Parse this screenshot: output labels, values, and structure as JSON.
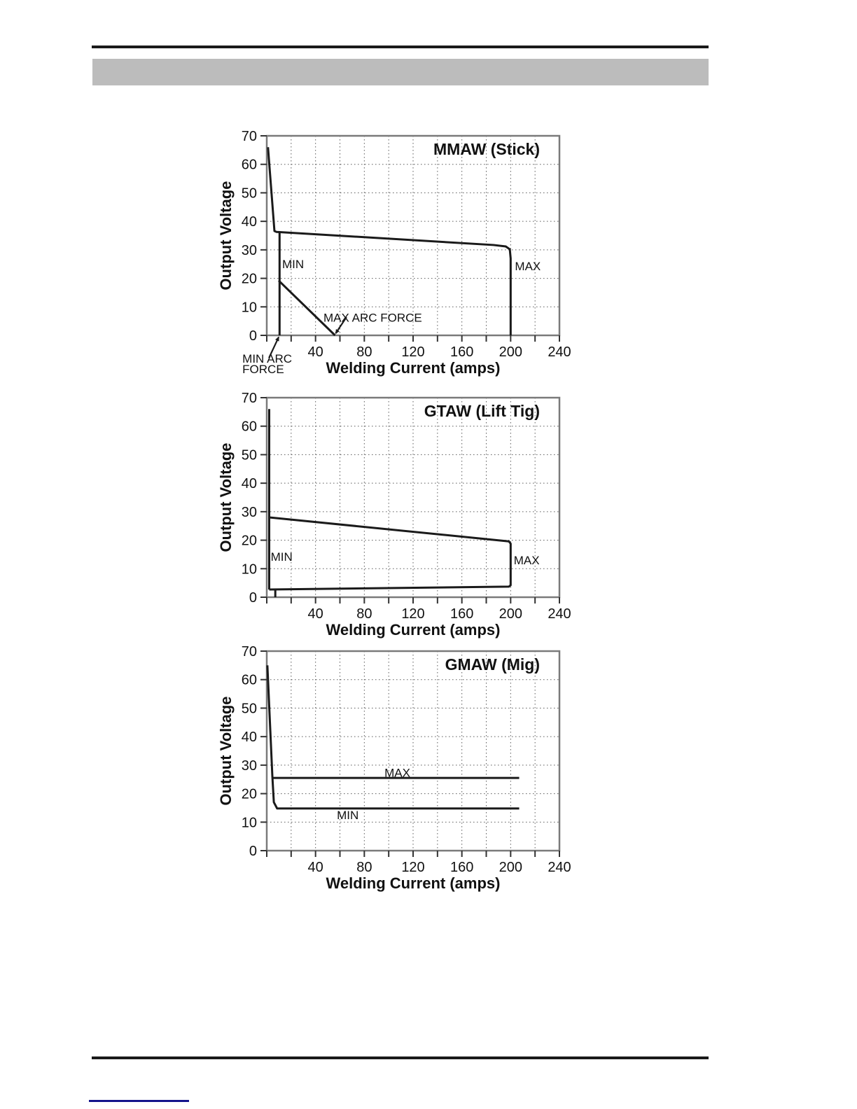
{
  "page": {
    "background": "#ffffff",
    "rule_color": "#1a1a1a",
    "header_bar_color": "#bcbcbc",
    "footer_link_color": "#14148c"
  },
  "style": {
    "curve_color": "#1a1a1a",
    "axis_color": "#7a7a7a",
    "grid_color": "#5a5a5a",
    "text_color": "#111111"
  },
  "chart_data": [
    {
      "type": "line",
      "title": "MMAW (Stick)",
      "xlabel": "Welding Current (amps)",
      "ylabel": "Output Voltage",
      "xlim": [
        0,
        240
      ],
      "ylim": [
        0,
        70
      ],
      "x_major_ticks": [
        40,
        80,
        120,
        160,
        200,
        240
      ],
      "x_tick_labels": [
        "40",
        "80",
        "120",
        "160",
        "200",
        "240"
      ],
      "x_minor_step": 20,
      "y_ticks": [
        0,
        10,
        20,
        30,
        40,
        50,
        60,
        70
      ],
      "y_tick_labels": [
        "0",
        "10",
        "20",
        "30",
        "40",
        "50",
        "60",
        "70"
      ],
      "grid": {
        "x_step": 20,
        "y_step": 10,
        "style": "dotted"
      },
      "legend": "none",
      "series": [
        {
          "name": "max-curve",
          "points": [
            [
              1,
              66
            ],
            [
              6.3,
              36.6
            ],
            [
              8,
              36.3
            ],
            [
              186,
              31.7
            ],
            [
              196,
              31.2
            ],
            [
              199.3,
              30.2
            ],
            [
              200,
              27
            ],
            [
              200,
              0
            ]
          ]
        },
        {
          "name": "min-current-limit",
          "points": [
            [
              10.5,
              36
            ],
            [
              10.5,
              0
            ]
          ]
        },
        {
          "name": "max-arc-force-line",
          "points": [
            [
              9.8,
              19.2
            ],
            [
              56,
              0
            ]
          ]
        }
      ],
      "annotations": [
        {
          "name": "min-label",
          "text": "MIN",
          "x": 12.6,
          "y": 23.6
        },
        {
          "name": "max-label",
          "text": "MAX",
          "x": 203.5,
          "y": 22.8
        },
        {
          "name": "max-arc-force-label",
          "text": "MAX ARC FORCE",
          "x": 46.5,
          "y": 4.8
        },
        {
          "name": "min-arc-force-label-line1",
          "text": "MIN ARC",
          "x": -20,
          "y": -9.6
        },
        {
          "name": "min-arc-force-label-line2",
          "text": "FORCE",
          "x": -20,
          "y": -13.3
        }
      ],
      "arrows": [
        {
          "name": "max-arc-force-arrow",
          "from": [
            65.4,
            6.4
          ],
          "to": [
            56.5,
            0.7
          ]
        },
        {
          "name": "min-arc-force-arrow",
          "from": [
            1.8,
            -7.9
          ],
          "to": [
            9.8,
            -0.6
          ]
        }
      ]
    },
    {
      "type": "line",
      "title": "GTAW (Lift Tig)",
      "xlabel": "Welding Current (amps)",
      "ylabel": "Output Voltage",
      "xlim": [
        0,
        240
      ],
      "ylim": [
        0,
        70
      ],
      "x_major_ticks": [
        40,
        80,
        120,
        160,
        200,
        240
      ],
      "x_tick_labels": [
        "40",
        "80",
        "120",
        "160",
        "200",
        "240"
      ],
      "x_minor_step": 20,
      "y_ticks": [
        0,
        10,
        20,
        30,
        40,
        50,
        60,
        70
      ],
      "y_tick_labels": [
        "0",
        "10",
        "20",
        "30",
        "40",
        "50",
        "60",
        "70"
      ],
      "grid": {
        "x_step": 20,
        "y_step": 10,
        "style": "dotted"
      },
      "legend": "none",
      "series": [
        {
          "name": "ocv-line",
          "points": [
            [
              2,
              66
            ],
            [
              2,
              2.7
            ]
          ]
        },
        {
          "name": "operating-envelope",
          "points": [
            [
              2,
              28
            ],
            [
              198.5,
              19.6
            ],
            [
              200,
              18.8
            ],
            [
              200,
              4.2
            ],
            [
              198.5,
              3.7
            ],
            [
              2,
              2.7
            ]
          ]
        },
        {
          "name": "min-stub",
          "points": [
            [
              7,
              2.7
            ],
            [
              7,
              0
            ]
          ]
        }
      ],
      "annotations": [
        {
          "name": "min-label",
          "text": "MIN",
          "x": 3.2,
          "y": 12.8
        },
        {
          "name": "max-label",
          "text": "MAX",
          "x": 202.5,
          "y": 11.6
        }
      ],
      "arrows": []
    },
    {
      "type": "line",
      "title": "GMAW (Mig)",
      "xlabel": "Welding Current (amps)",
      "ylabel": "Output Voltage",
      "xlim": [
        0,
        240
      ],
      "ylim": [
        0,
        70
      ],
      "x_major_ticks": [
        40,
        80,
        120,
        160,
        200,
        240
      ],
      "x_tick_labels": [
        "40",
        "80",
        "120",
        "160",
        "200",
        "240"
      ],
      "x_minor_step": 20,
      "y_ticks": [
        0,
        10,
        20,
        30,
        40,
        50,
        60,
        70
      ],
      "y_tick_labels": [
        "0",
        "10",
        "20",
        "30",
        "40",
        "50",
        "60",
        "70"
      ],
      "grid": {
        "x_step": 20,
        "y_step": 10,
        "style": "dotted"
      },
      "legend": "none",
      "series": [
        {
          "name": "min-voltage-curve",
          "points": [
            [
              0.5,
              65
            ],
            [
              4.6,
              26
            ],
            [
              5.8,
              17
            ],
            [
              8.5,
              14.8
            ],
            [
              207,
              14.8
            ]
          ]
        },
        {
          "name": "max-voltage-line",
          "points": [
            [
              4.55,
              25.5
            ],
            [
              207,
              25.5
            ]
          ]
        }
      ],
      "annotations": [
        {
          "name": "max-label",
          "text": "MAX",
          "x": 96.5,
          "y": 25.9
        },
        {
          "name": "min-label",
          "text": "MIN",
          "x": 57.5,
          "y": 11.1
        }
      ],
      "arrows": []
    }
  ]
}
